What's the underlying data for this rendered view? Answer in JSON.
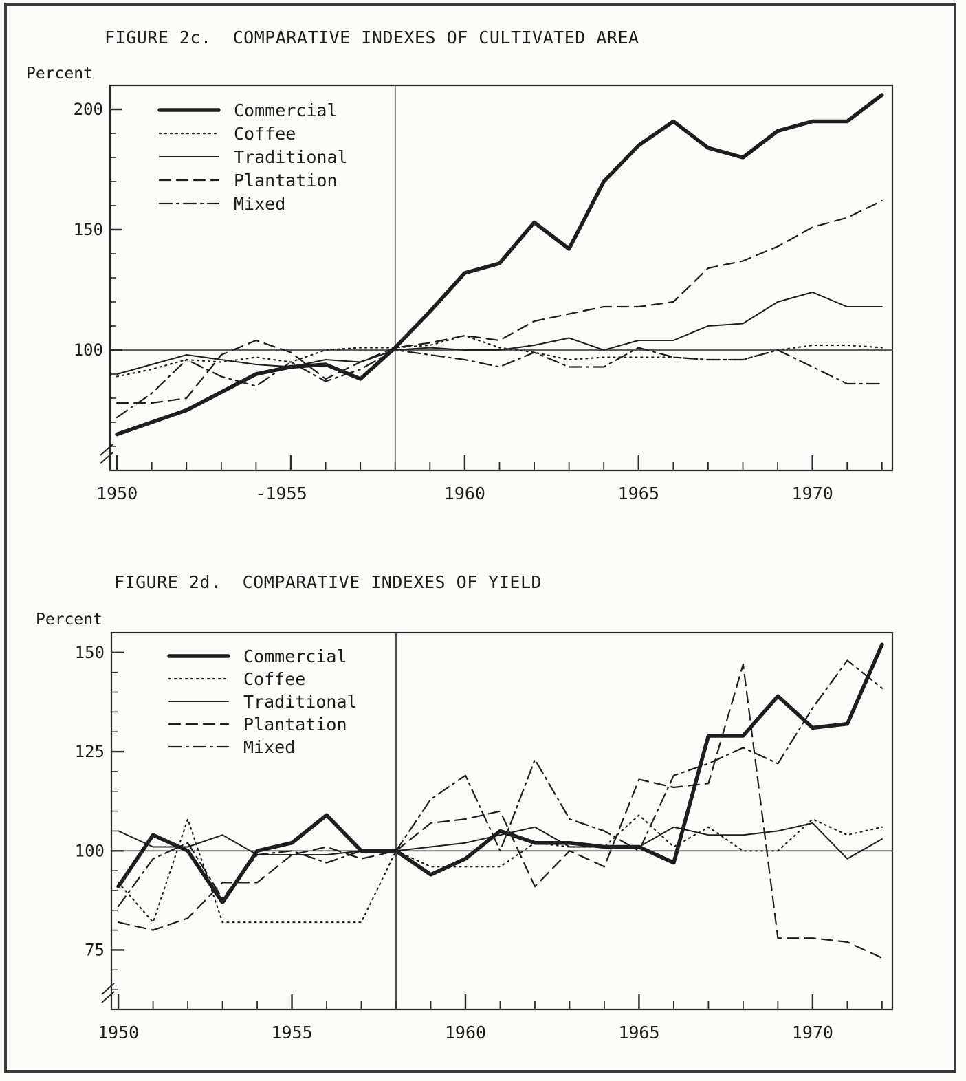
{
  "chart_data": [
    {
      "type": "line",
      "title": "FIGURE 2c.  COMPARATIVE INDEXES OF CULTIVATED AREA",
      "ylabel": "Percent",
      "xlabel": "",
      "xlim": [
        1949.8,
        1972.3
      ],
      "ylim": [
        50,
        210
      ],
      "y_ticks": [
        200,
        150,
        100
      ],
      "x_tick_labels": [
        {
          "x": 1950,
          "label": "1950"
        },
        {
          "x": 1955,
          "label": "-1955"
        },
        {
          "x": 1960,
          "label": "1960"
        },
        {
          "x": 1965,
          "label": "1965"
        },
        {
          "x": 1970,
          "label": "1970"
        }
      ],
      "base_year": 1958,
      "base_value": 100,
      "axis_break": true,
      "grid": false,
      "legend_position": "top-left",
      "series": [
        {
          "name": "Commercial",
          "style": "thick",
          "x": [
            1950,
            1952,
            1954,
            1955,
            1956,
            1957,
            1958,
            1959,
            1960,
            1961,
            1962,
            1963,
            1964,
            1965,
            1966,
            1967,
            1968,
            1969,
            1970,
            1971,
            1972
          ],
          "values": [
            65,
            75,
            90,
            93,
            94,
            88,
            101,
            116,
            132,
            136,
            153,
            142,
            170,
            185,
            195,
            184,
            180,
            191,
            195,
            195,
            206
          ]
        },
        {
          "name": "Coffee",
          "style": "dotted",
          "x": [
            1950,
            1951,
            1952,
            1953,
            1954,
            1955,
            1956,
            1957,
            1958,
            1959,
            1960,
            1961,
            1962,
            1963,
            1964,
            1965,
            1966,
            1967,
            1968,
            1969,
            1970,
            1971,
            1972
          ],
          "values": [
            89,
            92,
            96,
            95,
            97,
            95,
            100,
            101,
            101,
            102,
            106,
            101,
            99,
            96,
            97,
            97,
            97,
            96,
            96,
            100,
            102,
            102,
            101
          ]
        },
        {
          "name": "Traditional",
          "style": "solid",
          "x": [
            1950,
            1951,
            1952,
            1953,
            1954,
            1955,
            1956,
            1957,
            1958,
            1959,
            1960,
            1961,
            1962,
            1963,
            1964,
            1965,
            1966,
            1967,
            1968,
            1969,
            1970,
            1971,
            1972
          ],
          "values": [
            90,
            94,
            98,
            96,
            94,
            93,
            96,
            95,
            100,
            101,
            100,
            100,
            102,
            105,
            100,
            104,
            104,
            110,
            111,
            120,
            124,
            118,
            118
          ]
        },
        {
          "name": "Plantation",
          "style": "dashed",
          "x": [
            1950,
            1951,
            1952,
            1953,
            1954,
            1955,
            1956,
            1957,
            1958,
            1959,
            1960,
            1961,
            1962,
            1963,
            1964,
            1965,
            1966,
            1967,
            1968,
            1969,
            1970,
            1971,
            1972
          ],
          "values": [
            78,
            78,
            80,
            98,
            104,
            99,
            88,
            95,
            101,
            103,
            106,
            104,
            112,
            115,
            118,
            118,
            120,
            134,
            137,
            143,
            151,
            155,
            162
          ]
        },
        {
          "name": "Mixed",
          "style": "dashdot",
          "x": [
            1950,
            1951,
            1952,
            1953,
            1954,
            1955,
            1956,
            1957,
            1958,
            1959,
            1960,
            1961,
            1962,
            1963,
            1964,
            1965,
            1966,
            1967,
            1968,
            1969,
            1970,
            1971,
            1972
          ],
          "values": [
            72,
            82,
            96,
            89,
            85,
            95,
            87,
            92,
            100,
            98,
            96,
            93,
            99,
            93,
            93,
            101,
            97,
            96,
            96,
            100,
            93,
            86,
            86
          ]
        }
      ]
    },
    {
      "type": "line",
      "title": "FIGURE 2d.  COMPARATIVE INDEXES OF YIELD",
      "ylabel": "Percent",
      "xlabel": "",
      "xlim": [
        1949.8,
        1972.3
      ],
      "ylim": [
        60,
        155
      ],
      "y_ticks": [
        150,
        125,
        100,
        75
      ],
      "x_tick_labels": [
        {
          "x": 1950,
          "label": "1950"
        },
        {
          "x": 1955,
          "label": "1955"
        },
        {
          "x": 1960,
          "label": "1960"
        },
        {
          "x": 1965,
          "label": "1965"
        },
        {
          "x": 1970,
          "label": "1970"
        }
      ],
      "base_year": 1958,
      "base_value": 100,
      "axis_break": true,
      "grid": false,
      "legend_position": "top-left",
      "series": [
        {
          "name": "Commercial",
          "style": "thick",
          "x": [
            1950,
            1951,
            1952,
            1953,
            1954,
            1955,
            1956,
            1957,
            1958,
            1959,
            1960,
            1961,
            1962,
            1963,
            1964,
            1965,
            1966,
            1967,
            1968,
            1969,
            1970,
            1971,
            1972
          ],
          "values": [
            91,
            104,
            100,
            87,
            100,
            102,
            109,
            100,
            100,
            94,
            98,
            105,
            102,
            102,
            101,
            101,
            97,
            129,
            129,
            139,
            131,
            132,
            152
          ]
        },
        {
          "name": "Coffee",
          "style": "dotted",
          "x": [
            1950,
            1951,
            1952,
            1953,
            1954,
            1955,
            1956,
            1957,
            1958,
            1959,
            1960,
            1961,
            1962,
            1963,
            1964,
            1965,
            1966,
            1967,
            1968,
            1969,
            1970,
            1971,
            1972
          ],
          "values": [
            92,
            82,
            108,
            82,
            82,
            82,
            82,
            82,
            100,
            96,
            96,
            96,
            102,
            101,
            101,
            109,
            101,
            106,
            100,
            100,
            108,
            104,
            106
          ]
        },
        {
          "name": "Traditional",
          "style": "solid",
          "x": [
            1950,
            1951,
            1952,
            1953,
            1954,
            1955,
            1956,
            1957,
            1958,
            1959,
            1960,
            1961,
            1962,
            1963,
            1964,
            1965,
            1966,
            1967,
            1968,
            1969,
            1970,
            1971,
            1972
          ],
          "values": [
            105,
            101,
            101,
            104,
            99,
            99,
            99,
            100,
            100,
            101,
            102,
            104,
            106,
            101,
            101,
            101,
            106,
            104,
            104,
            105,
            107,
            98,
            103
          ]
        },
        {
          "name": "Plantation",
          "style": "dashed",
          "x": [
            1950,
            1951,
            1952,
            1953,
            1954,
            1955,
            1956,
            1957,
            1958,
            1959,
            1960,
            1961,
            1962,
            1963,
            1964,
            1965,
            1966,
            1967,
            1968,
            1969,
            1970,
            1971,
            1972
          ],
          "values": [
            82,
            80,
            83,
            92,
            92,
            99,
            101,
            98,
            100,
            107,
            108,
            110,
            91,
            100,
            96,
            118,
            116,
            117,
            147,
            78,
            78,
            77,
            73
          ]
        },
        {
          "name": "Mixed",
          "style": "dashdot",
          "x": [
            1950,
            1951,
            1952,
            1953,
            1954,
            1955,
            1956,
            1957,
            1958,
            1959,
            1960,
            1961,
            1962,
            1963,
            1964,
            1965,
            1966,
            1967,
            1968,
            1969,
            1970,
            1971,
            1972
          ],
          "values": [
            86,
            98,
            102,
            88,
            99,
            100,
            97,
            100,
            100,
            113,
            119,
            100,
            123,
            108,
            105,
            100,
            119,
            122,
            126,
            122,
            136,
            148,
            141
          ]
        }
      ]
    }
  ]
}
